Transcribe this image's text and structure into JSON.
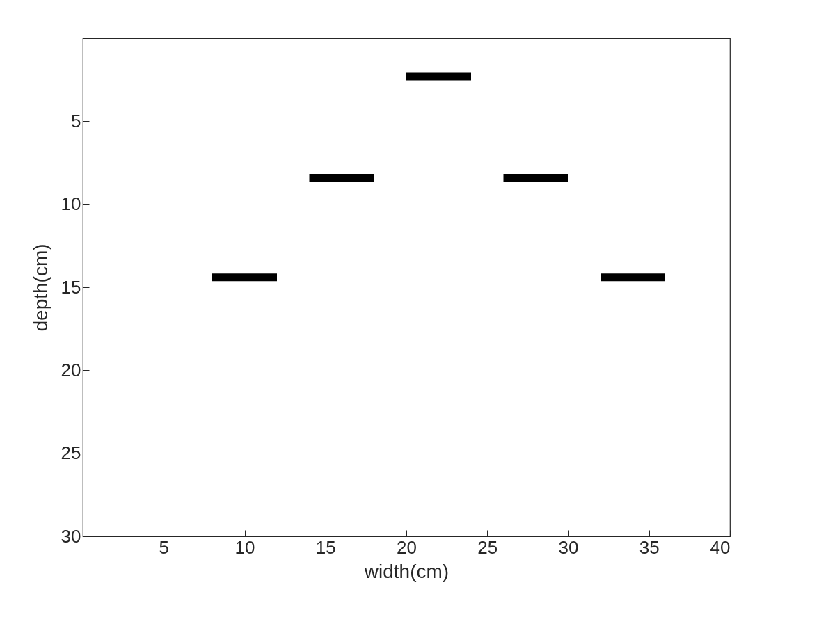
{
  "chart_data": {
    "type": "line",
    "xlabel": "width(cm)",
    "ylabel": "depth(cm)",
    "series": [
      {
        "color": "#000000",
        "x": [
          8,
          12
        ],
        "values": [
          14.4,
          14.4
        ]
      },
      {
        "color": "#000000",
        "x": [
          14,
          18
        ],
        "values": [
          8.4,
          8.4
        ]
      },
      {
        "color": "#000000",
        "x": [
          20,
          24
        ],
        "values": [
          2.3,
          2.3
        ]
      },
      {
        "color": "#000000",
        "x": [
          26,
          30
        ],
        "values": [
          8.4,
          8.4
        ]
      },
      {
        "color": "#000000",
        "x": [
          32,
          36
        ],
        "values": [
          14.4,
          14.4
        ]
      }
    ],
    "xlim": [
      0,
      40
    ],
    "ylim": [
      30,
      0
    ],
    "xticks": [
      5,
      10,
      15,
      20,
      25,
      30,
      35,
      40
    ],
    "yticks": [
      5,
      10,
      15,
      20,
      25,
      30
    ],
    "line_style": "solid"
  }
}
